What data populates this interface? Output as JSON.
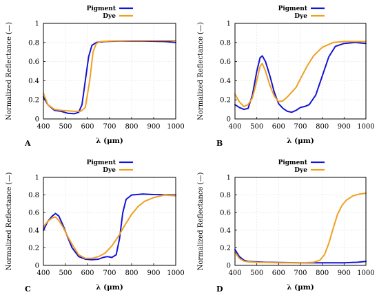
{
  "colors": {
    "pigment": "#1414d2",
    "dye": "#f0a020"
  },
  "chart_data": [
    {
      "panel": "A",
      "type": "line",
      "xlabel": "λ (μm)",
      "ylabel": "Normalized Reflectance (—)",
      "xlim": [
        400,
        1000
      ],
      "ylim": [
        0,
        1
      ],
      "xticks": [
        400,
        500,
        600,
        700,
        800,
        900,
        1000
      ],
      "yticks": [
        0,
        0.2,
        0.4,
        0.6,
        0.8,
        1
      ],
      "legend_position": "top-center",
      "series": [
        {
          "name": "Pigment",
          "color_key": "pigment",
          "points": [
            [
              400,
              0.23
            ],
            [
              420,
              0.15
            ],
            [
              450,
              0.09
            ],
            [
              480,
              0.08
            ],
            [
              510,
              0.06
            ],
            [
              540,
              0.055
            ],
            [
              560,
              0.07
            ],
            [
              575,
              0.15
            ],
            [
              590,
              0.4
            ],
            [
              605,
              0.65
            ],
            [
              620,
              0.77
            ],
            [
              640,
              0.8
            ],
            [
              680,
              0.81
            ],
            [
              750,
              0.815
            ],
            [
              850,
              0.815
            ],
            [
              950,
              0.81
            ],
            [
              1000,
              0.8
            ]
          ]
        },
        {
          "name": "Dye",
          "color_key": "dye",
          "points": [
            [
              400,
              0.27
            ],
            [
              420,
              0.15
            ],
            [
              450,
              0.1
            ],
            [
              480,
              0.09
            ],
            [
              510,
              0.085
            ],
            [
              540,
              0.08
            ],
            [
              570,
              0.08
            ],
            [
              590,
              0.12
            ],
            [
              610,
              0.4
            ],
            [
              625,
              0.7
            ],
            [
              640,
              0.79
            ],
            [
              660,
              0.81
            ],
            [
              700,
              0.815
            ],
            [
              800,
              0.82
            ],
            [
              900,
              0.82
            ],
            [
              1000,
              0.82
            ]
          ]
        }
      ]
    },
    {
      "panel": "B",
      "type": "line",
      "xlabel": "λ (μm)",
      "ylabel": "Normalized Reflectance (—)",
      "xlim": [
        400,
        1000
      ],
      "ylim": [
        0,
        1
      ],
      "xticks": [
        400,
        500,
        600,
        700,
        800,
        900,
        1000
      ],
      "yticks": [
        0,
        0.2,
        0.4,
        0.6,
        0.8,
        1
      ],
      "legend_position": "top-center",
      "series": [
        {
          "name": "Pigment",
          "color_key": "pigment",
          "points": [
            [
              400,
              0.15
            ],
            [
              420,
              0.12
            ],
            [
              440,
              0.1
            ],
            [
              460,
              0.11
            ],
            [
              480,
              0.25
            ],
            [
              500,
              0.5
            ],
            [
              515,
              0.64
            ],
            [
              525,
              0.66
            ],
            [
              540,
              0.6
            ],
            [
              560,
              0.45
            ],
            [
              580,
              0.28
            ],
            [
              600,
              0.16
            ],
            [
              620,
              0.11
            ],
            [
              640,
              0.08
            ],
            [
              660,
              0.07
            ],
            [
              680,
              0.09
            ],
            [
              700,
              0.12
            ],
            [
              720,
              0.13
            ],
            [
              740,
              0.15
            ],
            [
              770,
              0.25
            ],
            [
              800,
              0.45
            ],
            [
              830,
              0.65
            ],
            [
              860,
              0.76
            ],
            [
              900,
              0.79
            ],
            [
              950,
              0.8
            ],
            [
              1000,
              0.79
            ]
          ]
        },
        {
          "name": "Dye",
          "color_key": "dye",
          "points": [
            [
              400,
              0.26
            ],
            [
              420,
              0.18
            ],
            [
              440,
              0.13
            ],
            [
              460,
              0.15
            ],
            [
              480,
              0.22
            ],
            [
              500,
              0.4
            ],
            [
              515,
              0.55
            ],
            [
              525,
              0.58
            ],
            [
              540,
              0.5
            ],
            [
              560,
              0.35
            ],
            [
              580,
              0.24
            ],
            [
              600,
              0.18
            ],
            [
              620,
              0.19
            ],
            [
              640,
              0.23
            ],
            [
              660,
              0.28
            ],
            [
              680,
              0.33
            ],
            [
              700,
              0.42
            ],
            [
              730,
              0.55
            ],
            [
              760,
              0.66
            ],
            [
              800,
              0.75
            ],
            [
              850,
              0.8
            ],
            [
              900,
              0.81
            ],
            [
              1000,
              0.81
            ]
          ]
        }
      ]
    },
    {
      "panel": "C",
      "type": "line",
      "xlabel": "λ (μm)",
      "ylabel": "Normalized Reflectance (—)",
      "xlim": [
        400,
        1000
      ],
      "ylim": [
        0,
        1
      ],
      "xticks": [
        400,
        500,
        600,
        700,
        800,
        900,
        1000
      ],
      "yticks": [
        0,
        0.2,
        0.4,
        0.6,
        0.8,
        1
      ],
      "legend_position": "top-center",
      "series": [
        {
          "name": "Pigment",
          "color_key": "pigment",
          "points": [
            [
              400,
              0.4
            ],
            [
              420,
              0.5
            ],
            [
              440,
              0.56
            ],
            [
              455,
              0.59
            ],
            [
              470,
              0.56
            ],
            [
              490,
              0.45
            ],
            [
              510,
              0.32
            ],
            [
              530,
              0.2
            ],
            [
              560,
              0.1
            ],
            [
              590,
              0.07
            ],
            [
              620,
              0.065
            ],
            [
              650,
              0.07
            ],
            [
              670,
              0.09
            ],
            [
              690,
              0.1
            ],
            [
              710,
              0.09
            ],
            [
              730,
              0.12
            ],
            [
              745,
              0.3
            ],
            [
              760,
              0.6
            ],
            [
              775,
              0.75
            ],
            [
              800,
              0.8
            ],
            [
              850,
              0.81
            ],
            [
              900,
              0.805
            ],
            [
              1000,
              0.8
            ]
          ]
        },
        {
          "name": "Dye",
          "color_key": "dye",
          "points": [
            [
              400,
              0.44
            ],
            [
              420,
              0.5
            ],
            [
              440,
              0.54
            ],
            [
              455,
              0.55
            ],
            [
              470,
              0.51
            ],
            [
              490,
              0.43
            ],
            [
              510,
              0.33
            ],
            [
              530,
              0.24
            ],
            [
              560,
              0.12
            ],
            [
              590,
              0.08
            ],
            [
              620,
              0.08
            ],
            [
              650,
              0.1
            ],
            [
              680,
              0.14
            ],
            [
              710,
              0.22
            ],
            [
              740,
              0.33
            ],
            [
              770,
              0.46
            ],
            [
              800,
              0.58
            ],
            [
              830,
              0.67
            ],
            [
              860,
              0.73
            ],
            [
              900,
              0.77
            ],
            [
              950,
              0.8
            ],
            [
              1000,
              0.79
            ]
          ]
        }
      ]
    },
    {
      "panel": "D",
      "type": "line",
      "xlabel": "λ (μm)",
      "ylabel": "Normalized Reflectance (—)",
      "xlim": [
        400,
        1000
      ],
      "ylim": [
        0,
        1
      ],
      "xticks": [
        400,
        500,
        600,
        700,
        800,
        900,
        1000
      ],
      "yticks": [
        0,
        0.2,
        0.4,
        0.6,
        0.8,
        1
      ],
      "legend_position": "top-center",
      "series": [
        {
          "name": "Pigment",
          "color_key": "pigment",
          "points": [
            [
              400,
              0.18
            ],
            [
              420,
              0.1
            ],
            [
              440,
              0.06
            ],
            [
              460,
              0.045
            ],
            [
              500,
              0.04
            ],
            [
              550,
              0.035
            ],
            [
              600,
              0.033
            ],
            [
              700,
              0.03
            ],
            [
              800,
              0.03
            ],
            [
              900,
              0.03
            ],
            [
              960,
              0.035
            ],
            [
              1000,
              0.045
            ]
          ]
        },
        {
          "name": "Dye",
          "color_key": "dye",
          "points": [
            [
              400,
              0.15
            ],
            [
              420,
              0.08
            ],
            [
              440,
              0.05
            ],
            [
              460,
              0.04
            ],
            [
              500,
              0.035
            ],
            [
              600,
              0.03
            ],
            [
              700,
              0.03
            ],
            [
              760,
              0.035
            ],
            [
              790,
              0.06
            ],
            [
              810,
              0.12
            ],
            [
              830,
              0.25
            ],
            [
              850,
              0.42
            ],
            [
              870,
              0.58
            ],
            [
              890,
              0.68
            ],
            [
              910,
              0.74
            ],
            [
              940,
              0.79
            ],
            [
              970,
              0.81
            ],
            [
              1000,
              0.82
            ]
          ]
        }
      ]
    }
  ]
}
